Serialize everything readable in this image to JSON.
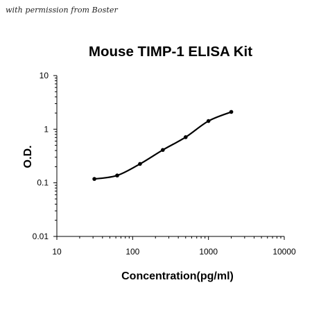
{
  "watermark": "with permission from Boster",
  "chart_data": {
    "type": "scatter",
    "title": "Mouse TIMP-1 ELISA Kit",
    "xlabel": "Concentration(pg/ml)",
    "ylabel": "O.D.",
    "x_scale": "log",
    "y_scale": "log",
    "xlim": [
      10,
      10000
    ],
    "ylim": [
      0.01,
      10
    ],
    "x_ticks": [
      10,
      100,
      1000,
      10000
    ],
    "x_tick_labels": [
      "10",
      "100",
      "1000",
      "10000"
    ],
    "y_ticks": [
      0.01,
      0.1,
      1,
      10
    ],
    "y_tick_labels": [
      "0.01",
      "0.1",
      "1",
      "10"
    ],
    "grid": false,
    "legend": "none",
    "series": [
      {
        "x": [
          31.25,
          62.5,
          125,
          250,
          500,
          1000,
          2000
        ],
        "y": [
          0.118,
          0.137,
          0.225,
          0.41,
          0.71,
          1.42,
          2.1
        ],
        "color": "#000000",
        "fit_line": true
      }
    ]
  }
}
